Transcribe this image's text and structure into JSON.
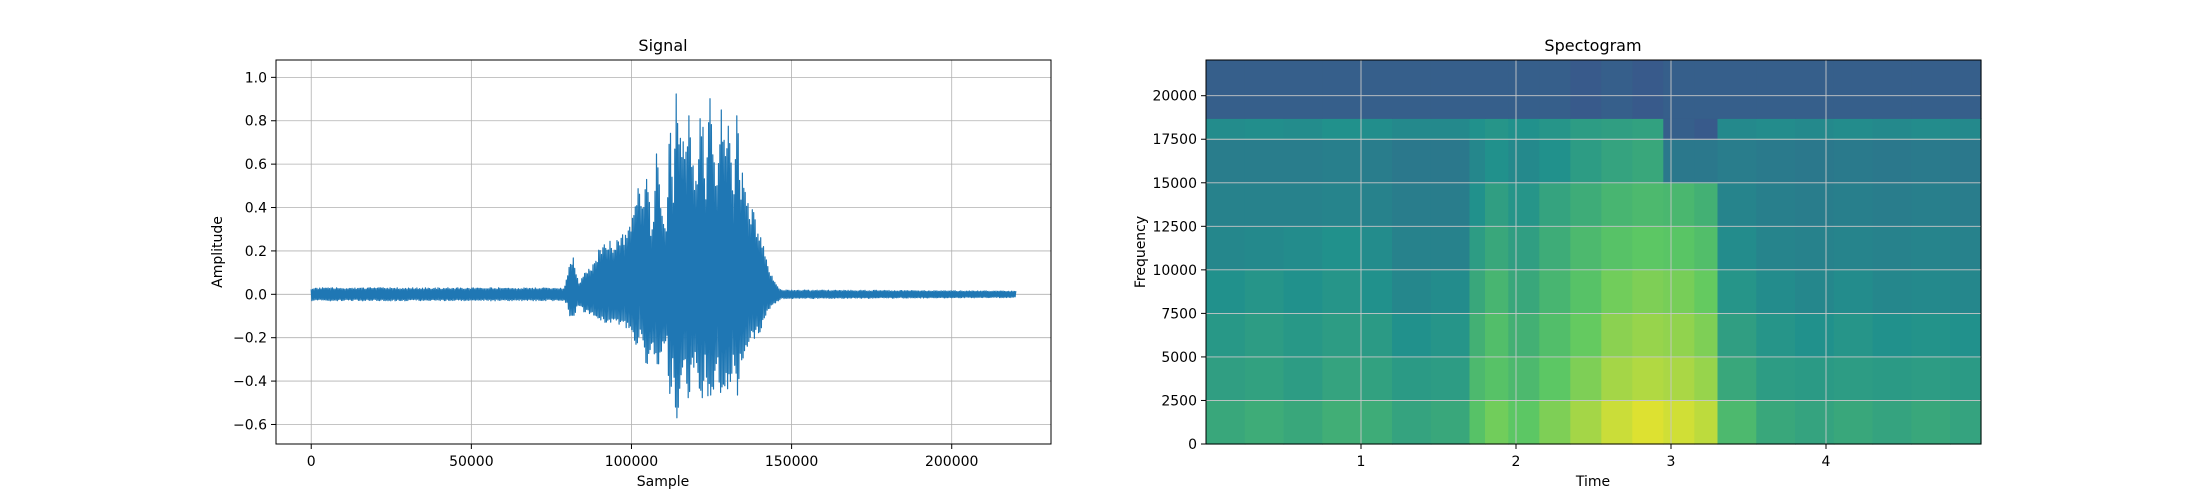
{
  "chart_data": [
    {
      "type": "line",
      "title": "Signal",
      "xlabel": "Sample",
      "ylabel": "Amplitude",
      "xlim": [
        -11000,
        231000
      ],
      "ylim": [
        -0.69,
        1.08
      ],
      "x_ticks": [
        0,
        50000,
        100000,
        150000,
        200000
      ],
      "y_ticks": [
        -0.6,
        -0.4,
        -0.2,
        0.0,
        0.2,
        0.4,
        0.6,
        0.8,
        1.0
      ],
      "grid": true,
      "line_color": "#1f77b4",
      "series": [
        {
          "x": [
            0,
            79000,
            80000,
            81000,
            82000,
            83000,
            84000,
            85000,
            88000,
            90000,
            92000,
            94000,
            96000,
            98000,
            100000,
            101000,
            102000,
            103000,
            104000,
            105000,
            106000,
            107000,
            108000,
            109000,
            110000,
            111000,
            112000,
            113000,
            114000,
            115000,
            116000,
            117000,
            118000,
            119000,
            120000,
            121000,
            122000,
            123000,
            124000,
            125000,
            126000,
            127000,
            128000,
            129000,
            130000,
            131000,
            132000,
            133000,
            134000,
            135000,
            136000,
            137000,
            138000,
            139000,
            140000,
            141000,
            142000,
            143000,
            144000,
            145000,
            146000,
            147000,
            150000,
            220000
          ],
          "upper": [
            0.03,
            0.03,
            0.1,
            0.18,
            0.17,
            0.08,
            0.05,
            0.1,
            0.14,
            0.22,
            0.24,
            0.25,
            0.27,
            0.28,
            0.35,
            0.42,
            0.5,
            0.45,
            0.52,
            0.62,
            0.35,
            0.42,
            0.75,
            0.4,
            0.38,
            0.3,
            0.82,
            0.5,
            1.0,
            0.78,
            0.72,
            0.65,
            1.0,
            0.62,
            0.55,
            0.7,
            1.0,
            0.52,
            0.8,
            1.0,
            0.6,
            0.55,
            1.0,
            0.7,
            0.88,
            0.65,
            0.5,
            0.95,
            0.52,
            0.62,
            0.45,
            0.38,
            0.4,
            0.35,
            0.3,
            0.25,
            0.18,
            0.12,
            0.08,
            0.05,
            0.03,
            0.02,
            0.02,
            0.015
          ],
          "lower": [
            -0.03,
            -0.03,
            -0.05,
            -0.12,
            -0.11,
            -0.06,
            -0.05,
            -0.08,
            -0.1,
            -0.12,
            -0.14,
            -0.14,
            -0.15,
            -0.16,
            -0.18,
            -0.22,
            -0.25,
            -0.2,
            -0.3,
            -0.35,
            -0.25,
            -0.28,
            -0.4,
            -0.3,
            -0.28,
            -0.2,
            -0.55,
            -0.35,
            -0.6,
            -0.5,
            -0.4,
            -0.38,
            -0.52,
            -0.35,
            -0.32,
            -0.4,
            -0.55,
            -0.35,
            -0.5,
            -0.55,
            -0.38,
            -0.35,
            -0.58,
            -0.45,
            -0.5,
            -0.4,
            -0.32,
            -0.55,
            -0.3,
            -0.32,
            -0.25,
            -0.2,
            -0.22,
            -0.2,
            -0.18,
            -0.15,
            -0.1,
            -0.07,
            -0.05,
            -0.04,
            -0.03,
            -0.02,
            -0.02,
            -0.015
          ]
        }
      ]
    },
    {
      "type": "heatmap",
      "title": "Spectogram",
      "xlabel": "Time",
      "ylabel": "Frequency",
      "xlim": [
        0,
        5
      ],
      "ylim": [
        0,
        22050
      ],
      "x_ticks": [
        1,
        2,
        3,
        4
      ],
      "y_ticks": [
        0,
        2500,
        5000,
        7500,
        10000,
        12500,
        15000,
        17500,
        20000
      ],
      "grid": true,
      "colormap": "viridis",
      "time_bins": [
        0,
        0.25,
        0.5,
        0.75,
        1.0,
        1.2,
        1.45,
        1.7,
        1.8,
        1.95,
        2.15,
        2.35,
        2.55,
        2.75,
        2.95,
        3.15,
        3.3,
        3.55,
        3.8,
        4.05,
        4.3,
        4.55,
        4.8,
        5.0
      ],
      "freq_bands": [
        {
          "f0": 0,
          "f1": 2500,
          "level": [
            0.6,
            0.62,
            0.6,
            0.63,
            0.62,
            0.58,
            0.6,
            0.72,
            0.78,
            0.74,
            0.8,
            0.86,
            0.92,
            0.95,
            0.93,
            0.9,
            0.68,
            0.6,
            0.58,
            0.6,
            0.58,
            0.6,
            0.58
          ]
        },
        {
          "f0": 2500,
          "f1": 5000,
          "level": [
            0.56,
            0.57,
            0.55,
            0.58,
            0.57,
            0.54,
            0.55,
            0.68,
            0.72,
            0.68,
            0.74,
            0.8,
            0.86,
            0.88,
            0.87,
            0.84,
            0.6,
            0.55,
            0.54,
            0.55,
            0.54,
            0.55,
            0.54
          ]
        },
        {
          "f0": 5000,
          "f1": 7500,
          "level": [
            0.53,
            0.55,
            0.53,
            0.55,
            0.54,
            0.5,
            0.52,
            0.64,
            0.7,
            0.64,
            0.7,
            0.76,
            0.82,
            0.84,
            0.83,
            0.8,
            0.56,
            0.52,
            0.5,
            0.52,
            0.5,
            0.51,
            0.5
          ]
        },
        {
          "f0": 7500,
          "f1": 10000,
          "level": [
            0.5,
            0.52,
            0.5,
            0.52,
            0.5,
            0.46,
            0.48,
            0.6,
            0.66,
            0.6,
            0.66,
            0.72,
            0.78,
            0.8,
            0.79,
            0.76,
            0.52,
            0.48,
            0.46,
            0.48,
            0.46,
            0.47,
            0.46
          ]
        },
        {
          "f0": 10000,
          "f1": 12500,
          "level": [
            0.46,
            0.47,
            0.48,
            0.5,
            0.48,
            0.44,
            0.44,
            0.55,
            0.6,
            0.56,
            0.62,
            0.68,
            0.72,
            0.74,
            0.73,
            0.7,
            0.48,
            0.45,
            0.44,
            0.45,
            0.44,
            0.45,
            0.44
          ]
        },
        {
          "f0": 12500,
          "f1": 15000,
          "level": [
            0.44,
            0.44,
            0.44,
            0.45,
            0.44,
            0.42,
            0.42,
            0.5,
            0.56,
            0.52,
            0.58,
            0.62,
            0.66,
            0.68,
            0.67,
            0.64,
            0.45,
            0.43,
            0.42,
            0.43,
            0.42,
            0.43,
            0.42
          ]
        },
        {
          "f0": 15000,
          "f1": 17500,
          "level": [
            0.42,
            0.42,
            0.42,
            0.43,
            0.42,
            0.4,
            0.4,
            0.46,
            0.5,
            0.47,
            0.5,
            0.55,
            0.58,
            0.6,
            0.4,
            0.4,
            0.42,
            0.41,
            0.4,
            0.41,
            0.4,
            0.41,
            0.4
          ]
        },
        {
          "f0": 17500,
          "f1": 18700,
          "level": [
            0.48,
            0.49,
            0.48,
            0.5,
            0.49,
            0.47,
            0.47,
            0.5,
            0.52,
            0.5,
            0.52,
            0.55,
            0.56,
            0.57,
            0.3,
            0.28,
            0.47,
            0.48,
            0.47,
            0.48,
            0.47,
            0.48,
            0.47
          ]
        },
        {
          "f0": 18700,
          "f1": 22050,
          "level": [
            0.3,
            0.3,
            0.3,
            0.3,
            0.3,
            0.3,
            0.3,
            0.3,
            0.3,
            0.3,
            0.3,
            0.28,
            0.3,
            0.28,
            0.3,
            0.3,
            0.3,
            0.3,
            0.3,
            0.3,
            0.3,
            0.3,
            0.3
          ]
        }
      ]
    }
  ]
}
